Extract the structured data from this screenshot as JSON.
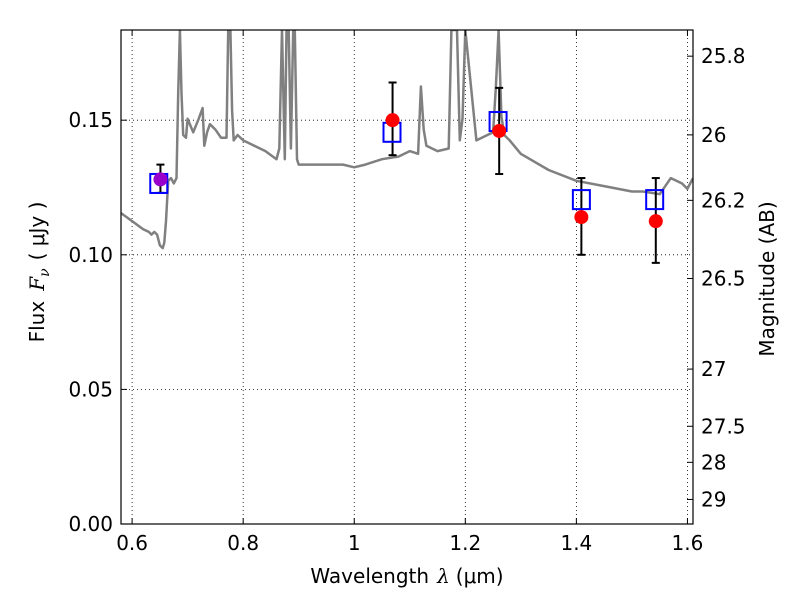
{
  "chart_data": {
    "type": "scatter",
    "xlabel": "Wavelength",
    "xlabel_symbol": "λ",
    "xlabel_unit": "(μm)",
    "ylabel": "Flux",
    "ylabel_symbol": "F",
    "ylabel_subscript": "ν",
    "ylabel_unit": "( μJy )",
    "y2label": "Magnitude (AB)",
    "xlim": [
      0.58,
      1.61
    ],
    "ylim": [
      0.0,
      0.1835
    ],
    "grid": true,
    "xticks": [
      0.6,
      0.8,
      1.0,
      1.2,
      1.4,
      1.6
    ],
    "xtick_labels": [
      "0.6",
      "0.8",
      "1",
      "1.2",
      "1.4",
      "1.6"
    ],
    "yticks": [
      0.0,
      0.05,
      0.1,
      0.15
    ],
    "ytick_labels": [
      "0.00",
      "0.05",
      "0.10",
      "0.15"
    ],
    "y2ticks": [
      {
        "mag": 25.8,
        "label": "25.8"
      },
      {
        "mag": 26.0,
        "label": "26"
      },
      {
        "mag": 26.2,
        "label": "26.2"
      },
      {
        "mag": 26.5,
        "label": "26.5"
      },
      {
        "mag": 27.0,
        "label": "27"
      },
      {
        "mag": 27.5,
        "label": "27.5"
      },
      {
        "mag": 28.0,
        "label": "28"
      },
      {
        "mag": 29.0,
        "label": "29"
      }
    ],
    "series": [
      {
        "kind": "model_spectrum",
        "color": "#808080",
        "x": [
          0.58,
          0.6,
          0.62,
          0.63,
          0.635,
          0.64,
          0.645,
          0.65,
          0.655,
          0.658,
          0.661,
          0.665,
          0.67,
          0.675,
          0.68,
          0.683,
          0.686,
          0.689,
          0.692,
          0.697,
          0.7,
          0.71,
          0.72,
          0.727,
          0.73,
          0.735,
          0.74,
          0.75,
          0.76,
          0.77,
          0.773,
          0.777,
          0.78,
          0.783,
          0.79,
          0.8,
          0.82,
          0.84,
          0.86,
          0.865,
          0.87,
          0.875,
          0.878,
          0.882,
          0.886,
          0.89,
          0.893,
          0.897,
          0.9,
          0.92,
          0.95,
          0.98,
          1.0,
          1.02,
          1.05,
          1.08,
          1.1,
          1.115,
          1.12,
          1.125,
          1.13,
          1.15,
          1.17,
          1.175,
          1.18,
          1.185,
          1.19,
          1.195,
          1.2,
          1.22,
          1.25,
          1.255,
          1.26,
          1.265,
          1.27,
          1.28,
          1.3,
          1.35,
          1.4,
          1.45,
          1.5,
          1.52,
          1.55,
          1.57,
          1.59,
          1.6,
          1.61
        ],
        "y": [
          0.1155,
          0.1125,
          0.1095,
          0.1085,
          0.1075,
          0.1085,
          0.1075,
          0.1035,
          0.1025,
          0.1045,
          0.1125,
          0.1275,
          0.1285,
          0.1265,
          0.1285,
          0.16,
          0.1835,
          0.16,
          0.1445,
          0.1435,
          0.1505,
          0.1455,
          0.1505,
          0.1545,
          0.1405,
          0.1455,
          0.1485,
          0.1465,
          0.1435,
          0.1435,
          0.1835,
          0.1835,
          0.1535,
          0.1425,
          0.1445,
          0.1425,
          0.1405,
          0.1385,
          0.1355,
          0.1395,
          0.1835,
          0.1355,
          0.1835,
          0.1835,
          0.1395,
          0.1835,
          0.1835,
          0.1355,
          0.1335,
          0.1335,
          0.1335,
          0.1335,
          0.1325,
          0.1335,
          0.1355,
          0.1365,
          0.1385,
          0.1375,
          0.1625,
          0.1465,
          0.1405,
          0.1385,
          0.1395,
          0.1835,
          0.1835,
          0.1835,
          0.1425,
          0.1505,
          0.1835,
          0.1425,
          0.1455,
          0.1625,
          0.1835,
          0.1515,
          0.1445,
          0.1425,
          0.1375,
          0.1315,
          0.1275,
          0.1255,
          0.1235,
          0.1235,
          0.1225,
          0.1285,
          0.1265,
          0.1245,
          0.1285
        ]
      },
      {
        "kind": "model_photometry",
        "marker": "open-square",
        "color": "#0000ff",
        "x": [
          0.648,
          1.068,
          1.259,
          1.409,
          1.541
        ],
        "y": [
          0.1265,
          0.1455,
          0.1495,
          0.1205,
          0.1205
        ]
      },
      {
        "kind": "observed_photometry",
        "marker": "filled-circle",
        "color": "#ff0000",
        "x": [
          0.651,
          1.069,
          1.261,
          1.409,
          1.543
        ],
        "y": [
          0.128,
          0.15,
          0.146,
          0.114,
          0.1125
        ],
        "err_low": [
          0.123,
          0.137,
          0.13,
          0.1,
          0.097
        ],
        "err_high": [
          0.1335,
          0.164,
          0.162,
          0.1285,
          0.1285
        ],
        "overlap_color": "#9900cc"
      }
    ]
  }
}
